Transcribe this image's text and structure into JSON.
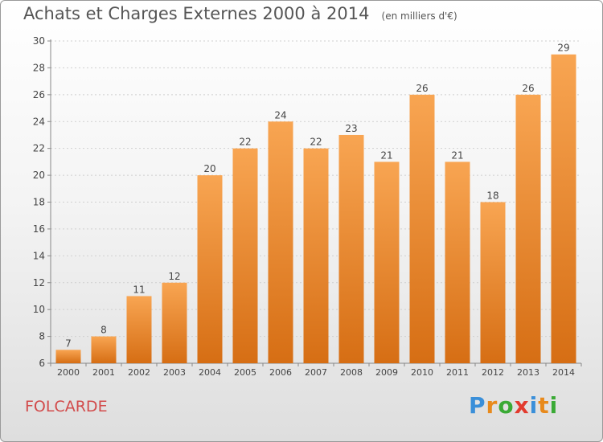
{
  "header": {
    "title": "Achats et Charges Externes 2000 à 2014",
    "unit": "(en milliers d'€)"
  },
  "footer": {
    "commune": "FOLCARDE",
    "logo_letters": [
      "P",
      "r",
      "o",
      "x",
      "i",
      "t",
      "i"
    ],
    "logo_colors": [
      "#3a8fd9",
      "#e88a1c",
      "#3aaa35",
      "#e23b2e",
      "#3a8fd9",
      "#e88a1c",
      "#3aaa35"
    ]
  },
  "chart_data": {
    "type": "bar",
    "categories": [
      "2000",
      "2001",
      "2002",
      "2003",
      "2004",
      "2005",
      "2006",
      "2007",
      "2008",
      "2009",
      "2010",
      "2011",
      "2012",
      "2013",
      "2014"
    ],
    "values": [
      7,
      8,
      11,
      12,
      20,
      22,
      24,
      22,
      23,
      21,
      26,
      21,
      18,
      26,
      29
    ],
    "ylim": [
      6,
      30
    ],
    "yticks": [
      6,
      8,
      10,
      12,
      14,
      16,
      18,
      20,
      22,
      24,
      26,
      28,
      30
    ],
    "grid": true,
    "bar_color": "#f0882c"
  }
}
